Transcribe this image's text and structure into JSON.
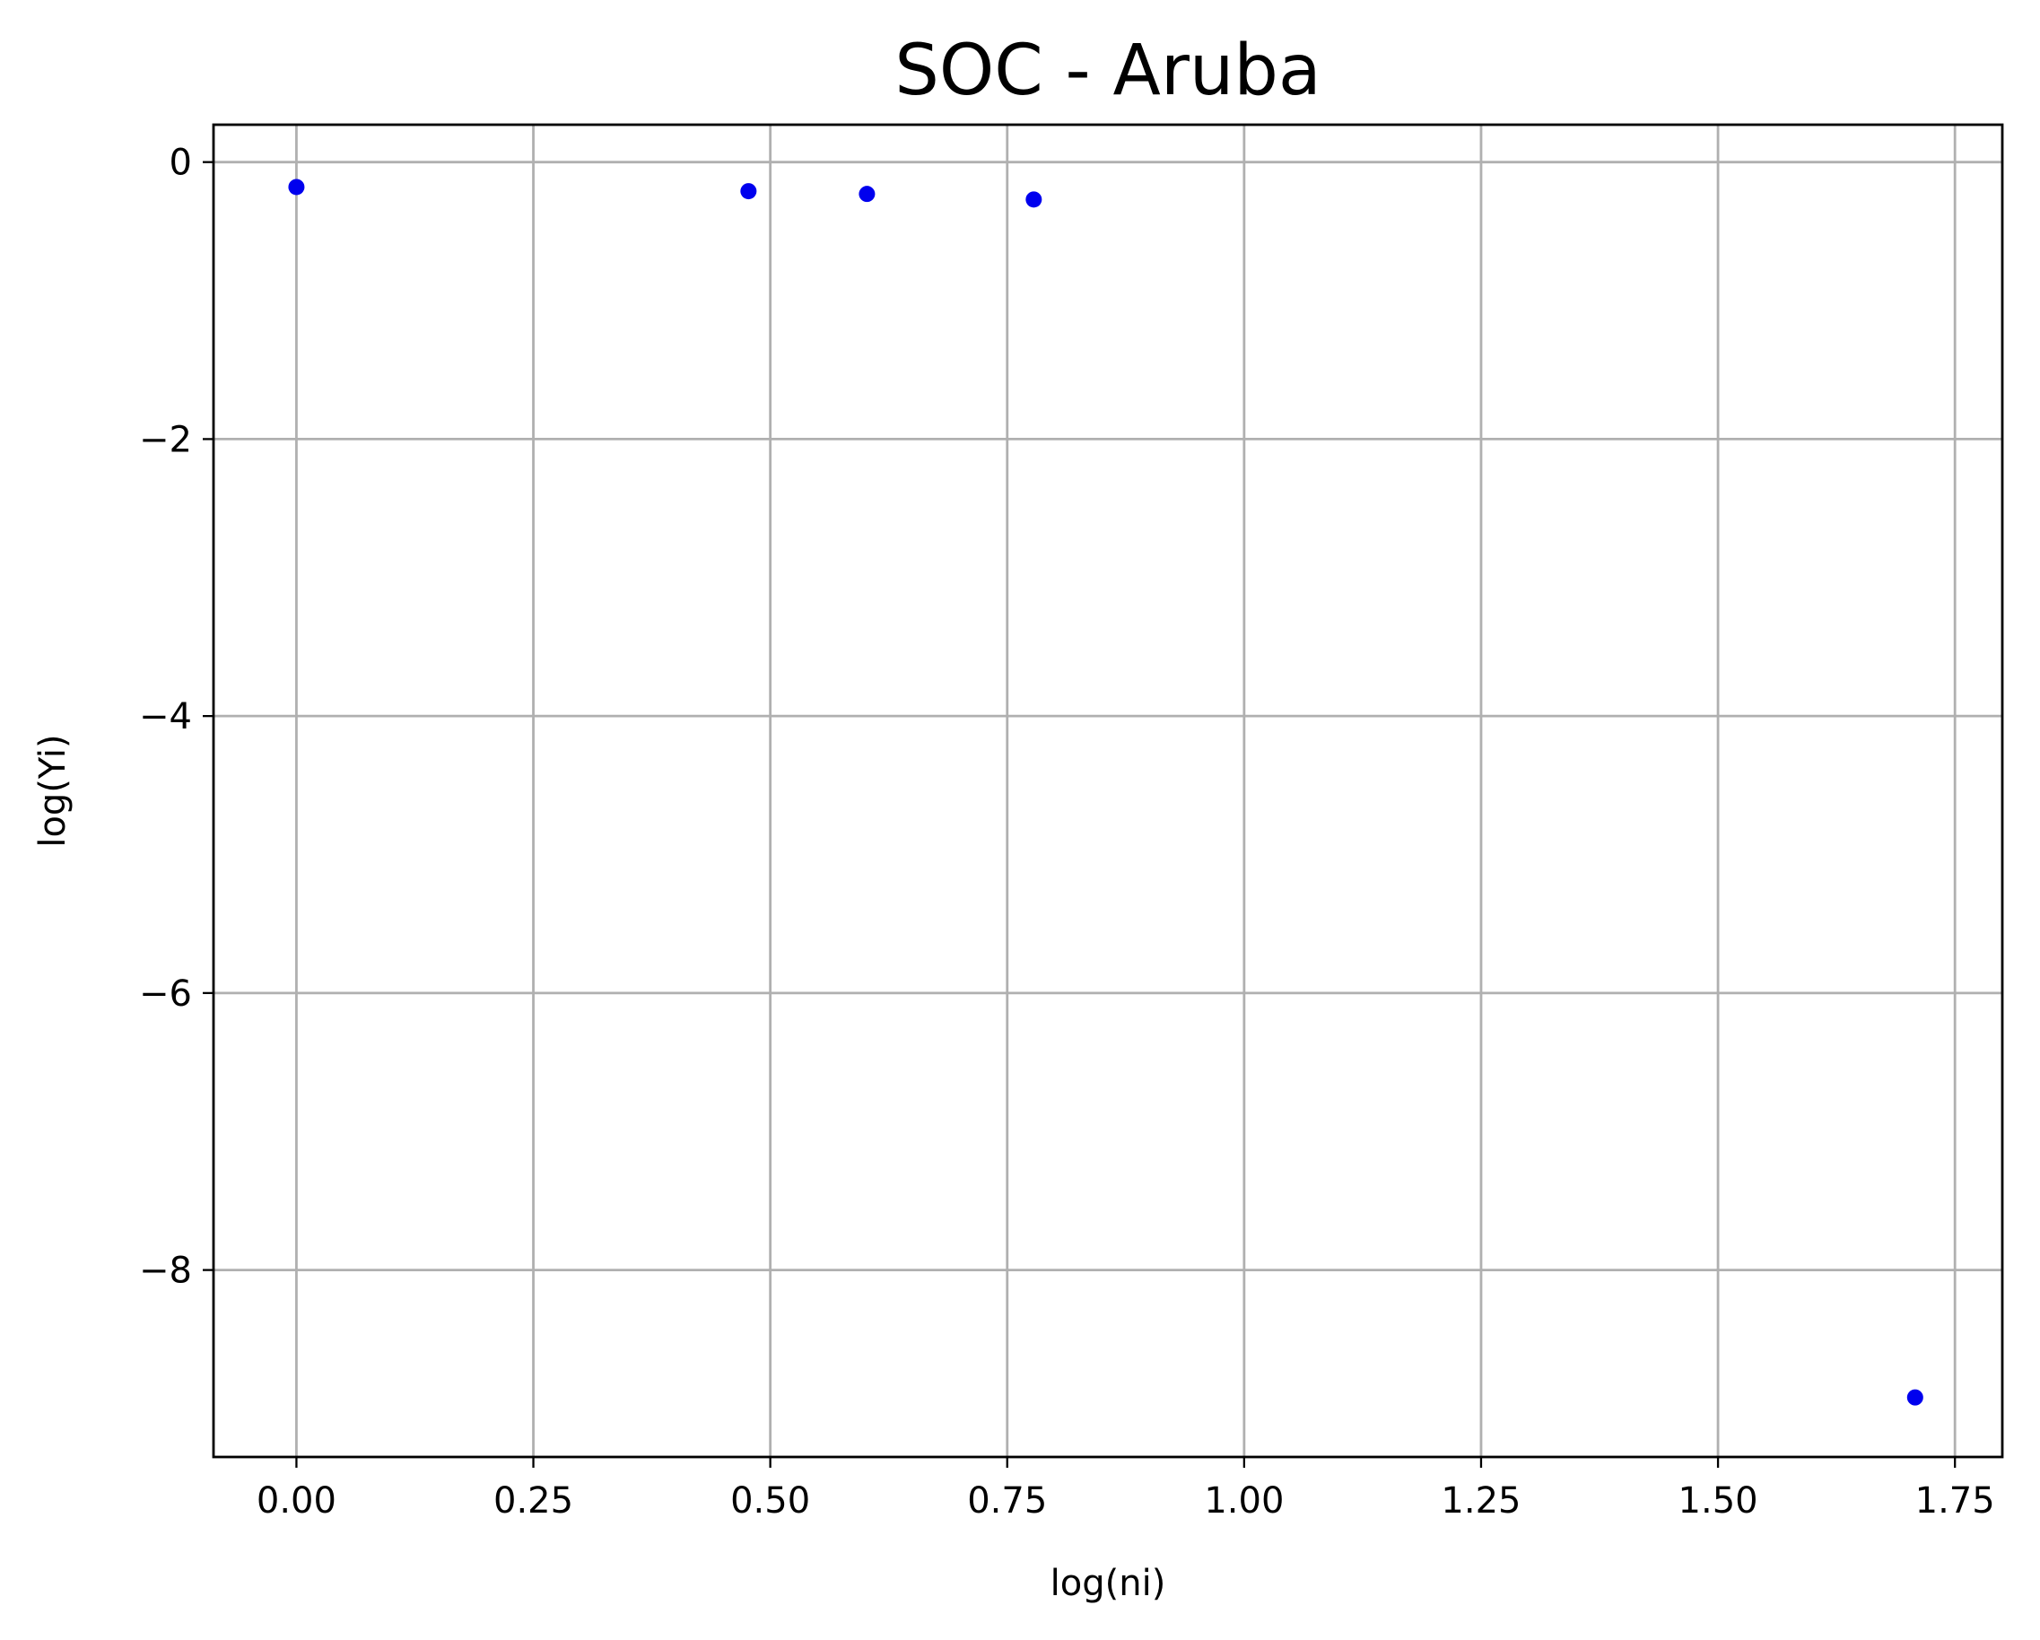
{
  "chart_data": {
    "type": "scatter",
    "title": "SOC - Aruba",
    "xlabel": "log(ni)",
    "ylabel": "log(Yi)",
    "xlim": [
      -0.0875,
      1.8
    ],
    "ylim": [
      -9.35,
      0.27
    ],
    "xticks": [
      0.0,
      0.25,
      0.5,
      0.75,
      1.0,
      1.25,
      1.5,
      1.75
    ],
    "xtick_labels": [
      "0.00",
      "0.25",
      "0.50",
      "0.75",
      "1.00",
      "1.25",
      "1.50",
      "1.75"
    ],
    "yticks": [
      0,
      -2,
      -4,
      -6,
      -8
    ],
    "ytick_labels": [
      "0",
      "−2",
      "−4",
      "−6",
      "−8"
    ],
    "grid": true,
    "series": [
      {
        "color": "#0000ee",
        "points": [
          {
            "x": 0.0,
            "y": -0.18
          },
          {
            "x": 0.477,
            "y": -0.21
          },
          {
            "x": 0.602,
            "y": -0.23
          },
          {
            "x": 0.778,
            "y": -0.27
          },
          {
            "x": 1.708,
            "y": -8.92
          }
        ]
      }
    ]
  }
}
